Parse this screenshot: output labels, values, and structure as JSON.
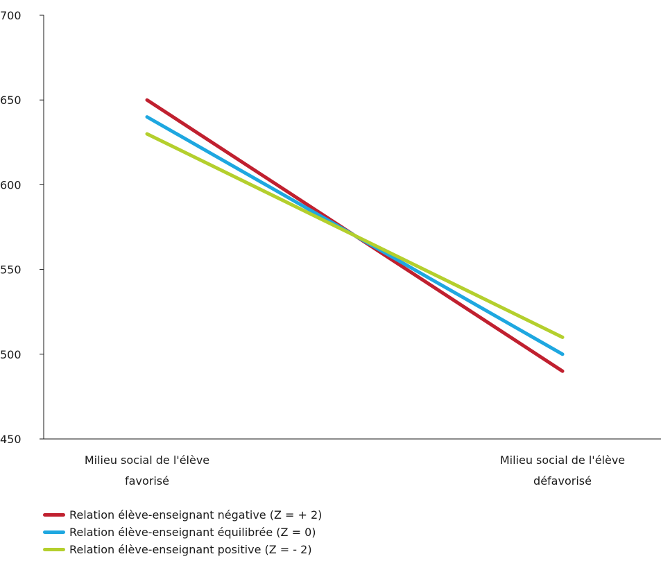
{
  "chart_data": {
    "type": "line",
    "title": "",
    "xlabel": "",
    "ylabel": "",
    "categories": [
      "Milieu social de l'élève favorisé",
      "Milieu social de l'élève défavorisé"
    ],
    "category_lines": [
      [
        "Milieu social de l'élève",
        "favorisé"
      ],
      [
        "Milieu social de l'élève",
        "défavorisé"
      ]
    ],
    "ylim": [
      450,
      700
    ],
    "yticks": [
      450,
      500,
      550,
      600,
      650,
      700
    ],
    "grid": false,
    "legend_position": "bottom-left",
    "series": [
      {
        "name": "Relation élève-enseignant négative (Z = + 2)",
        "values": [
          650,
          490
        ],
        "color": "#c0202f"
      },
      {
        "name": "Relation élève-enseignant équilibrée (Z = 0)",
        "values": [
          640,
          500
        ],
        "color": "#1ea7e0"
      },
      {
        "name": "Relation élève-enseignant positive (Z = - 2)",
        "values": [
          630,
          510
        ],
        "color": "#b4cf2d"
      }
    ]
  }
}
